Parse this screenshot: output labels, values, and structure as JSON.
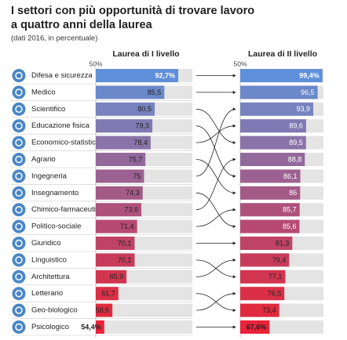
{
  "chart_data": {
    "type": "bar",
    "title": [
      "I settori con più opportunità di trovare lavoro",
      "a quattro anni della laurea"
    ],
    "subtitle": "(dati 2016, in percentuale)",
    "categories": [
      "Difesa e sicurezza",
      "Medico",
      "Scientifico",
      "Educazione fisica",
      "Economico-statistico",
      "Agrario",
      "Ingegneria",
      "Insegnamento",
      "Chimico-farmaceutico",
      "Politico-sociale",
      "Giuridico",
      "Linguistico",
      "Architettura",
      "Letterario",
      "Geo-biologico",
      "Psicologico"
    ],
    "colors": [
      "#5f8fd8",
      "#6b88c9",
      "#7683bf",
      "#8079b3",
      "#8a73a8",
      "#93699c",
      "#9c6192",
      "#a45a87",
      "#ad527c",
      "#b64a71",
      "#bf4366",
      "#c83c5b",
      "#d13550",
      "#da2f46",
      "#e02a3e",
      "#e8233a"
    ],
    "xlim": [
      50,
      100
    ],
    "xticks": [
      {
        "value": 50,
        "label": "50%"
      }
    ],
    "series": [
      {
        "name": "Laurea di I livello",
        "values": [
          92.7,
          85.5,
          80.5,
          79.3,
          78.4,
          75.7,
          75,
          74.3,
          73.6,
          71.4,
          70.1,
          70.1,
          65.9,
          61.7,
          58.6,
          54.4
        ],
        "value_labels": [
          "92,7%",
          "85,5",
          "80,5",
          "79,3",
          "78,4",
          "75,7",
          "75",
          "74,3",
          "73,6",
          "71,4",
          "70,1",
          "70,1",
          "65,9",
          "61,7",
          "58,6",
          "54,4%"
        ]
      },
      {
        "name": "Laurea di II livello",
        "values": [
          99.4,
          96.5,
          93.9,
          89.6,
          89.5,
          88.8,
          86.1,
          86,
          85.7,
          85.6,
          81.3,
          79.4,
          77.1,
          76.5,
          73.4,
          67.6
        ],
        "value_labels": [
          "99,4%",
          "96,5",
          "93,9",
          "89,6",
          "89,5",
          "88,8",
          "86,1",
          "86",
          "85,7",
          "85,6",
          "81,3",
          "79,4",
          "77,1",
          "76,5",
          "73,4",
          "67,6%"
        ],
        "links": [
          0,
          1,
          6,
          4,
          2,
          8,
          3,
          5,
          9,
          7,
          10,
          12,
          11,
          14,
          13,
          15
        ]
      }
    ]
  }
}
